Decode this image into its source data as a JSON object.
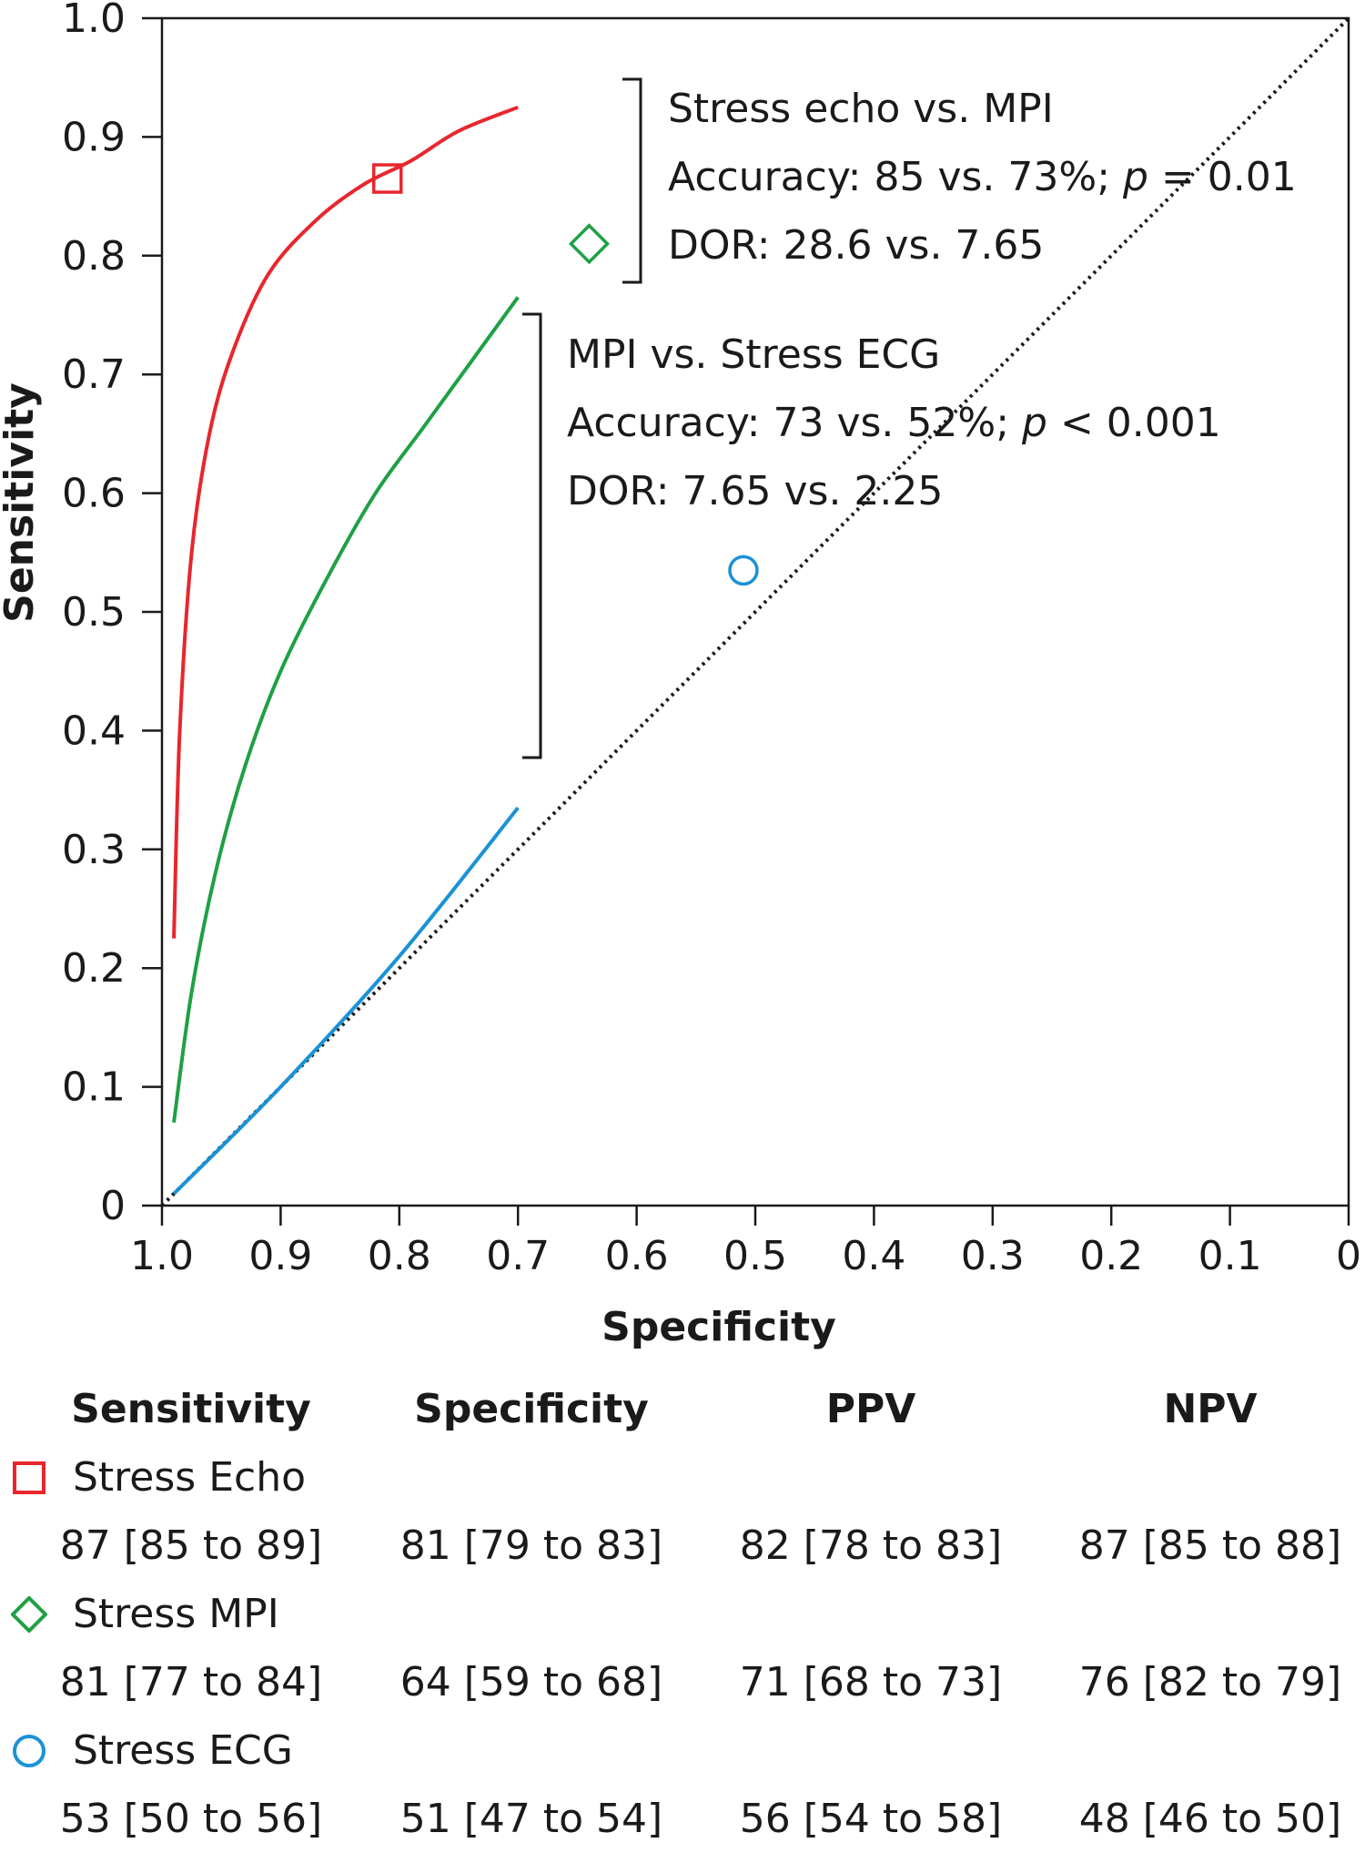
{
  "chart_data": {
    "type": "scatter",
    "xlabel": "Specificity",
    "ylabel": "Sensitivity",
    "xlim": [
      1.0,
      0
    ],
    "ylim": [
      0,
      1.0
    ],
    "x_reversed": true,
    "x_ticks": [
      "1.0",
      "0.9",
      "0.8",
      "0.7",
      "0.6",
      "0.5",
      "0.4",
      "0.3",
      "0.2",
      "0.1",
      "0"
    ],
    "y_ticks": [
      "0",
      "0.1",
      "0.2",
      "0.3",
      "0.4",
      "0.5",
      "0.6",
      "0.7",
      "0.8",
      "0.9",
      "1.0"
    ],
    "reference_line": {
      "style": "dotted",
      "from": [
        1.0,
        0
      ],
      "to": [
        0,
        1.0
      ]
    },
    "series": [
      {
        "name": "Stress Echo",
        "color": "#e8262d",
        "marker": "square",
        "point": {
          "specificity": 0.81,
          "sensitivity": 0.865
        },
        "curve": [
          [
            0.99,
            0.225
          ],
          [
            0.985,
            0.4
          ],
          [
            0.975,
            0.55
          ],
          [
            0.96,
            0.65
          ],
          [
            0.94,
            0.72
          ],
          [
            0.91,
            0.785
          ],
          [
            0.87,
            0.83
          ],
          [
            0.83,
            0.86
          ],
          [
            0.79,
            0.88
          ],
          [
            0.75,
            0.905
          ],
          [
            0.7,
            0.925
          ]
        ]
      },
      {
        "name": "Stress MPI",
        "color": "#1fa045",
        "marker": "diamond",
        "point": {
          "specificity": 0.64,
          "sensitivity": 0.81
        },
        "curve": [
          [
            0.99,
            0.07
          ],
          [
            0.975,
            0.18
          ],
          [
            0.955,
            0.28
          ],
          [
            0.93,
            0.37
          ],
          [
            0.9,
            0.45
          ],
          [
            0.86,
            0.53
          ],
          [
            0.82,
            0.6
          ],
          [
            0.78,
            0.655
          ],
          [
            0.74,
            0.71
          ],
          [
            0.7,
            0.765
          ]
        ]
      },
      {
        "name": "Stress ECG",
        "color": "#1b92d6",
        "marker": "circle",
        "point": {
          "specificity": 0.51,
          "sensitivity": 0.535
        },
        "curve": [
          [
            0.99,
            0.01
          ],
          [
            0.9,
            0.1
          ],
          [
            0.8,
            0.21
          ],
          [
            0.7,
            0.335
          ]
        ]
      }
    ],
    "annotations": [
      {
        "lines": [
          "Stress echo vs. MPI",
          "Accuracy: 85 vs. 73%; p = 0.01",
          "DOR: 28.6 vs. 7.65"
        ]
      },
      {
        "lines": [
          "MPI vs. Stress ECG",
          "Accuracy: 73 vs. 52%; p < 0.001",
          "DOR: 7.65 vs. 2.25"
        ]
      }
    ],
    "table": {
      "columns": [
        "Sensitivity",
        "Specificity",
        "PPV",
        "NPV"
      ],
      "rows": [
        {
          "label": "Stress Echo",
          "values": [
            "87 [85 to 89]",
            "81 [79 to 83]",
            "82 [78 to 83]",
            "87 [85 to 88]"
          ]
        },
        {
          "label": "Stress MPI",
          "values": [
            "81 [77 to 84]",
            "64 [59 to 68]",
            "71 [68 to 73]",
            "76 [82 to 79]"
          ]
        },
        {
          "label": "Stress ECG",
          "values": [
            "53 [50 to 56]",
            "51 [47 to 54]",
            "56 [54 to 58]",
            "48 [46 to 50]"
          ]
        }
      ]
    }
  }
}
